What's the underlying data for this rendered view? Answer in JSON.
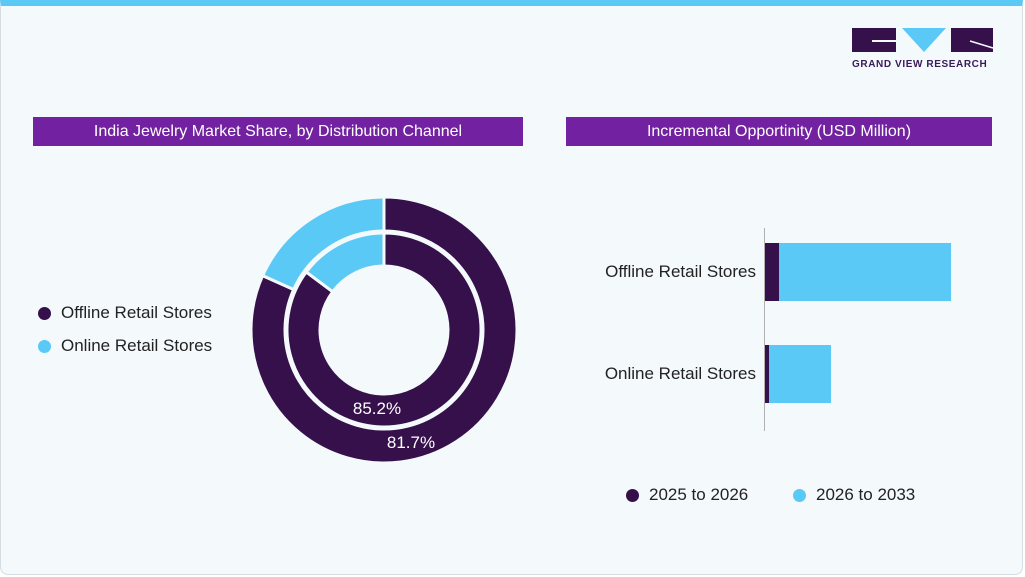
{
  "brand": {
    "logo_text": "GRAND VIEW RESEARCH"
  },
  "colors": {
    "offline": "#35104a",
    "online": "#5bc9f5",
    "title_bg": "#7222a0"
  },
  "chart_data": [
    {
      "type": "pie",
      "variant": "nested-donut",
      "title": "India Jewelry Market Share, by Distribution Channel",
      "legend": [
        "Offline Retail Stores",
        "Online Retail Stores"
      ],
      "legend_placement": "left",
      "rings": [
        {
          "ring": "outer",
          "values": [
            81.7,
            18.3
          ],
          "label": "81.7%"
        },
        {
          "ring": "inner",
          "values": [
            85.2,
            14.8
          ],
          "label": "85.2%"
        }
      ]
    },
    {
      "type": "bar",
      "orientation": "horizontal",
      "stacked": true,
      "title": "Incremental Opportinity (USD Million)",
      "categories": [
        "Offline Retail Stores",
        "Online Retail Stores"
      ],
      "series": [
        {
          "name": "2025 to 2026",
          "values": [
            14,
            4
          ]
        },
        {
          "name": "2026 to 2033",
          "values": [
            172,
            62
          ]
        }
      ],
      "legend_placement": "bottom",
      "grid": false
    }
  ]
}
